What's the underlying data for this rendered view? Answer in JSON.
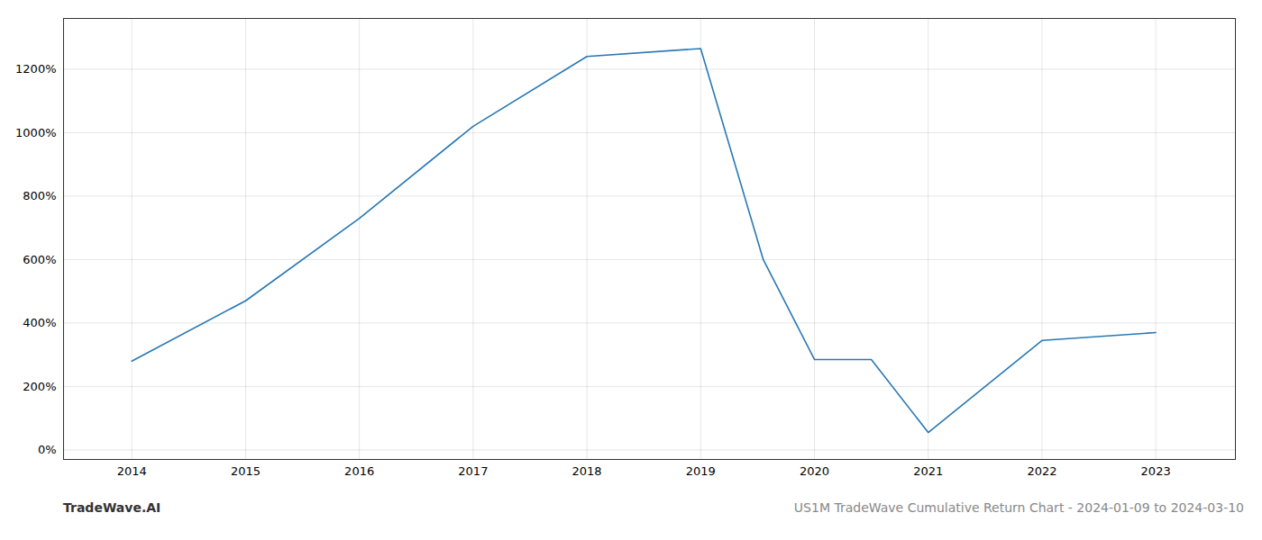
{
  "chart_data": {
    "type": "line",
    "title": "US1M TradeWave Cumulative Return Chart - 2024-01-09 to 2024-03-10",
    "annotations": [
      "TradeWave.AI"
    ],
    "x": [
      2014,
      2015,
      2016,
      2017,
      2018,
      2019,
      2019.55,
      2020,
      2020.5,
      2021,
      2022,
      2023
    ],
    "values": [
      280,
      470,
      730,
      1020,
      1240,
      1265,
      600,
      285,
      285,
      55,
      345,
      370
    ],
    "color": "#2878b5",
    "xlim": [
      2013.4,
      2023.7
    ],
    "xticks": [
      2014,
      2015,
      2016,
      2017,
      2018,
      2019,
      2020,
      2021,
      2022,
      2023
    ],
    "ylim": [
      -30,
      1360
    ],
    "yticks": [
      {
        "value": 0,
        "label": "0%"
      },
      {
        "value": 200,
        "label": "200%"
      },
      {
        "value": 400,
        "label": "400%"
      },
      {
        "value": 600,
        "label": "600%"
      },
      {
        "value": 800,
        "label": "800%"
      },
      {
        "value": 1000,
        "label": "1000%"
      },
      {
        "value": 1200,
        "label": "1200%"
      }
    ],
    "grid": true
  }
}
